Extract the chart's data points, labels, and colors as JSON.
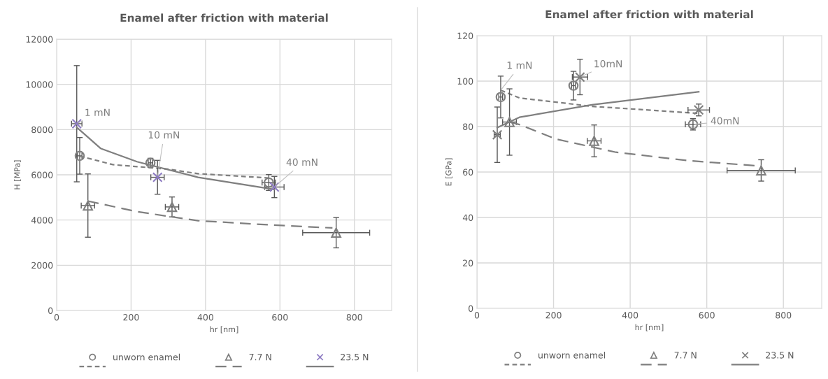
{
  "chart_data": [
    {
      "type": "scatter",
      "title": "Enamel after friction with material",
      "xlabel": "hr [nm]",
      "ylabel": "H [MPa]",
      "xlim": [
        0,
        900
      ],
      "xticks": [
        0,
        200,
        400,
        600,
        800
      ],
      "ylim": [
        0,
        12000
      ],
      "yticks": [
        0,
        2000,
        4000,
        6000,
        8000,
        10000,
        12000
      ],
      "grid": true,
      "legend": "bottom",
      "series": [
        {
          "name": "unworn enamel",
          "marker": "circle",
          "color": "#7f7f7f",
          "x": [
            62,
            252,
            570
          ],
          "values": [
            6840,
            6530,
            5660
          ],
          "errors": [
            810,
            200,
            350
          ],
          "xerrors": [
            6,
            6,
            18
          ]
        },
        {
          "type": "line",
          "line_style": "dotted",
          "color": "#7f7f7f",
          "x": [
            62,
            151,
            300,
            380,
            570
          ],
          "values": [
            6830,
            6450,
            6250,
            6050,
            5860
          ]
        },
        {
          "name": "7.7 N",
          "marker": "triangle",
          "color": "#7f7f7f",
          "x": [
            84,
            310,
            751
          ],
          "values": [
            4640,
            4580,
            3440
          ],
          "errors": [
            1400,
            440,
            670
          ],
          "xerrors": [
            18,
            18,
            90
          ]
        },
        {
          "type": "line",
          "line_style": "dashed",
          "color": "#7f7f7f",
          "x": [
            84,
            216,
            380,
            577,
            741
          ],
          "values": [
            4840,
            4370,
            3970,
            3780,
            3650
          ]
        },
        {
          "name": "23.5 N",
          "marker": "cross",
          "color": "#8e7cc3",
          "x": [
            54,
            271,
            585
          ],
          "values": [
            8260,
            5890,
            5460
          ],
          "errors": [
            2570,
            750,
            470
          ],
          "xerrors": [
            14,
            18,
            26
          ]
        },
        {
          "type": "line",
          "line_style": "solid",
          "color": "#7f7f7f",
          "x": [
            54,
            118,
            216,
            380,
            585
          ],
          "values": [
            8100,
            7170,
            6580,
            5890,
            5350
          ]
        }
      ],
      "annotations": [
        {
          "text": "1 mN",
          "x": 54,
          "y": 8260
        },
        {
          "text": "10 mN",
          "x": 271,
          "y": 5890
        },
        {
          "text": "40 mN",
          "x": 585,
          "y": 5460
        }
      ]
    },
    {
      "type": "scatter",
      "title": "Enamel after friction with material",
      "xlabel": "hr [nm]",
      "ylabel": "E [GPa]",
      "xlim": [
        0,
        900
      ],
      "xticks": [
        0,
        200,
        400,
        600,
        800
      ],
      "ylim": [
        0,
        120
      ],
      "yticks": [
        0,
        20,
        40,
        60,
        80,
        100,
        120
      ],
      "grid": true,
      "legend": "bottom",
      "series": [
        {
          "name": "unworn enamel",
          "marker": "circle",
          "color": "#7f7f7f",
          "x": [
            62,
            252,
            564
          ],
          "values": [
            93,
            98,
            81
          ],
          "errors": [
            9.2,
            6.3,
            2.5
          ],
          "xerrors": [
            5,
            5,
            20
          ]
        },
        {
          "type": "line",
          "line_style": "dotted",
          "color": "#7f7f7f",
          "x": [
            62,
            111,
            300,
            579
          ],
          "values": [
            96,
            92.6,
            88.9,
            85.8
          ]
        },
        {
          "name": "7.7 N",
          "marker": "triangle",
          "color": "#7f7f7f",
          "x": [
            85,
            306,
            742
          ],
          "values": [
            82,
            73.7,
            60.7
          ],
          "errors": [
            14.6,
            7,
            4.7
          ],
          "xerrors": [
            18,
            18,
            89
          ]
        },
        {
          "type": "line",
          "line_style": "dashed",
          "color": "#7f7f7f",
          "x": [
            85,
            111,
            206,
            363,
            552,
            734
          ],
          "values": [
            82,
            80.9,
            74.5,
            68.7,
            65,
            62.7
          ]
        },
        {
          "name": "23.5 N",
          "marker": "cross",
          "color": "#7f7f7f",
          "x": [
            53,
            269,
            579
          ],
          "values": [
            76.4,
            101.8,
            87.3
          ],
          "errors": [
            12.2,
            7.8,
            2.6
          ],
          "xerrors": [
            8,
            20,
            28
          ]
        },
        {
          "type": "line",
          "line_style": "solid",
          "color": "#7f7f7f",
          "x": [
            53,
            111,
            300,
            579
          ],
          "values": [
            79.5,
            84.1,
            89.6,
            95.3
          ]
        }
      ],
      "annotations": [
        {
          "text": "1 mN",
          "x": 62,
          "y": 96
        },
        {
          "text": "10mN",
          "x": 269,
          "y": 101.8
        },
        {
          "text": "40mN",
          "x": 564,
          "y": 81
        }
      ]
    }
  ]
}
